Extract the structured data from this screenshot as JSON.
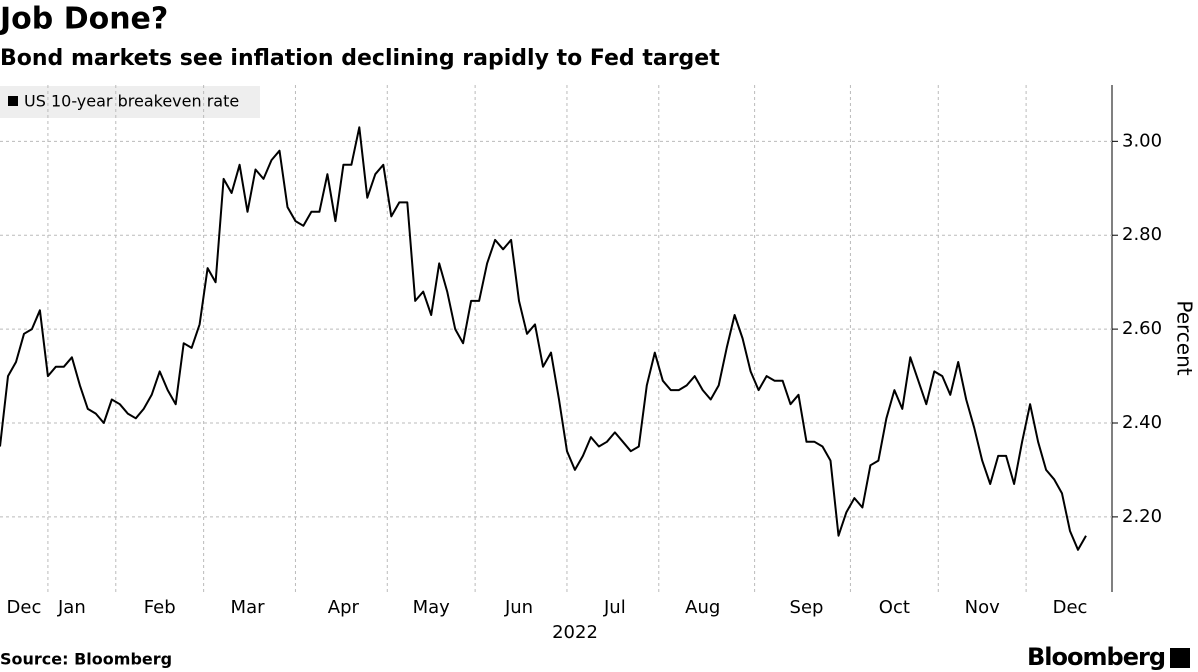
{
  "chart_data": {
    "type": "line",
    "title": "Job Done?",
    "subtitle": "Bond markets see inflation declining rapidly to Fed target",
    "x_label": "2022",
    "y_label": "Percent",
    "source": "Source: Bloomberg",
    "brand": "Bloomberg",
    "categories": [
      null,
      null,
      null,
      "Dec",
      null,
      null,
      null,
      null,
      null,
      "Jan",
      null,
      null,
      null,
      null,
      null,
      null,
      null,
      null,
      null,
      null,
      "Feb",
      null,
      null,
      null,
      null,
      null,
      null,
      null,
      null,
      null,
      null,
      "Mar",
      null,
      null,
      null,
      null,
      null,
      null,
      null,
      null,
      null,
      null,
      null,
      "Apr",
      null,
      null,
      null,
      null,
      null,
      null,
      null,
      null,
      null,
      null,
      "May",
      null,
      null,
      null,
      null,
      null,
      null,
      null,
      null,
      null,
      null,
      "Jun",
      null,
      null,
      null,
      null,
      null,
      null,
      null,
      null,
      null,
      null,
      null,
      "Jul",
      null,
      null,
      null,
      null,
      null,
      null,
      null,
      null,
      null,
      null,
      "Aug",
      null,
      null,
      null,
      null,
      null,
      null,
      null,
      null,
      null,
      null,
      null,
      null,
      "Sep",
      null,
      null,
      null,
      null,
      null,
      null,
      null,
      null,
      null,
      null,
      "Oct",
      null,
      null,
      null,
      null,
      null,
      null,
      null,
      null,
      null,
      null,
      "Nov",
      null,
      null,
      null,
      null,
      null,
      null,
      null,
      null,
      null,
      null,
      "Dec",
      null,
      null
    ],
    "series": [
      {
        "name": "US 10-year breakeven rate",
        "color": "#000000",
        "values": [
          2.35,
          2.5,
          2.53,
          2.59,
          2.6,
          2.64,
          2.5,
          2.52,
          2.52,
          2.54,
          2.48,
          2.43,
          2.42,
          2.4,
          2.45,
          2.44,
          2.42,
          2.41,
          2.43,
          2.46,
          2.51,
          2.47,
          2.44,
          2.57,
          2.56,
          2.61,
          2.73,
          2.7,
          2.92,
          2.89,
          2.95,
          2.85,
          2.94,
          2.92,
          2.96,
          2.98,
          2.86,
          2.83,
          2.82,
          2.85,
          2.85,
          2.93,
          2.83,
          2.95,
          2.95,
          3.03,
          2.88,
          2.93,
          2.95,
          2.84,
          2.87,
          2.87,
          2.66,
          2.68,
          2.63,
          2.74,
          2.68,
          2.6,
          2.57,
          2.66,
          2.66,
          2.74,
          2.79,
          2.77,
          2.79,
          2.66,
          2.59,
          2.61,
          2.52,
          2.55,
          2.45,
          2.34,
          2.3,
          2.33,
          2.37,
          2.35,
          2.36,
          2.38,
          2.36,
          2.34,
          2.35,
          2.48,
          2.55,
          2.49,
          2.47,
          2.47,
          2.48,
          2.5,
          2.47,
          2.45,
          2.48,
          2.56,
          2.63,
          2.58,
          2.51,
          2.47,
          2.5,
          2.49,
          2.49,
          2.44,
          2.46,
          2.36,
          2.36,
          2.35,
          2.32,
          2.16,
          2.21,
          2.24,
          2.22,
          2.31,
          2.32,
          2.41,
          2.47,
          2.43,
          2.54,
          2.49,
          2.44,
          2.51,
          2.5,
          2.46,
          2.53,
          2.45,
          2.39,
          2.32,
          2.27,
          2.33,
          2.33,
          2.27,
          2.36,
          2.44,
          2.36,
          2.3,
          2.28,
          2.25,
          2.17,
          2.13,
          2.16
        ]
      }
    ],
    "ylim": [
      2.04,
      3.12
    ],
    "yticks": [
      {
        "value": 2.2,
        "label": "2.20"
      },
      {
        "value": 2.4,
        "label": "2.40"
      },
      {
        "value": 2.6,
        "label": "2.60"
      },
      {
        "value": 2.8,
        "label": "2.80"
      },
      {
        "value": 3.0,
        "label": "3.00"
      }
    ],
    "grid": true
  }
}
